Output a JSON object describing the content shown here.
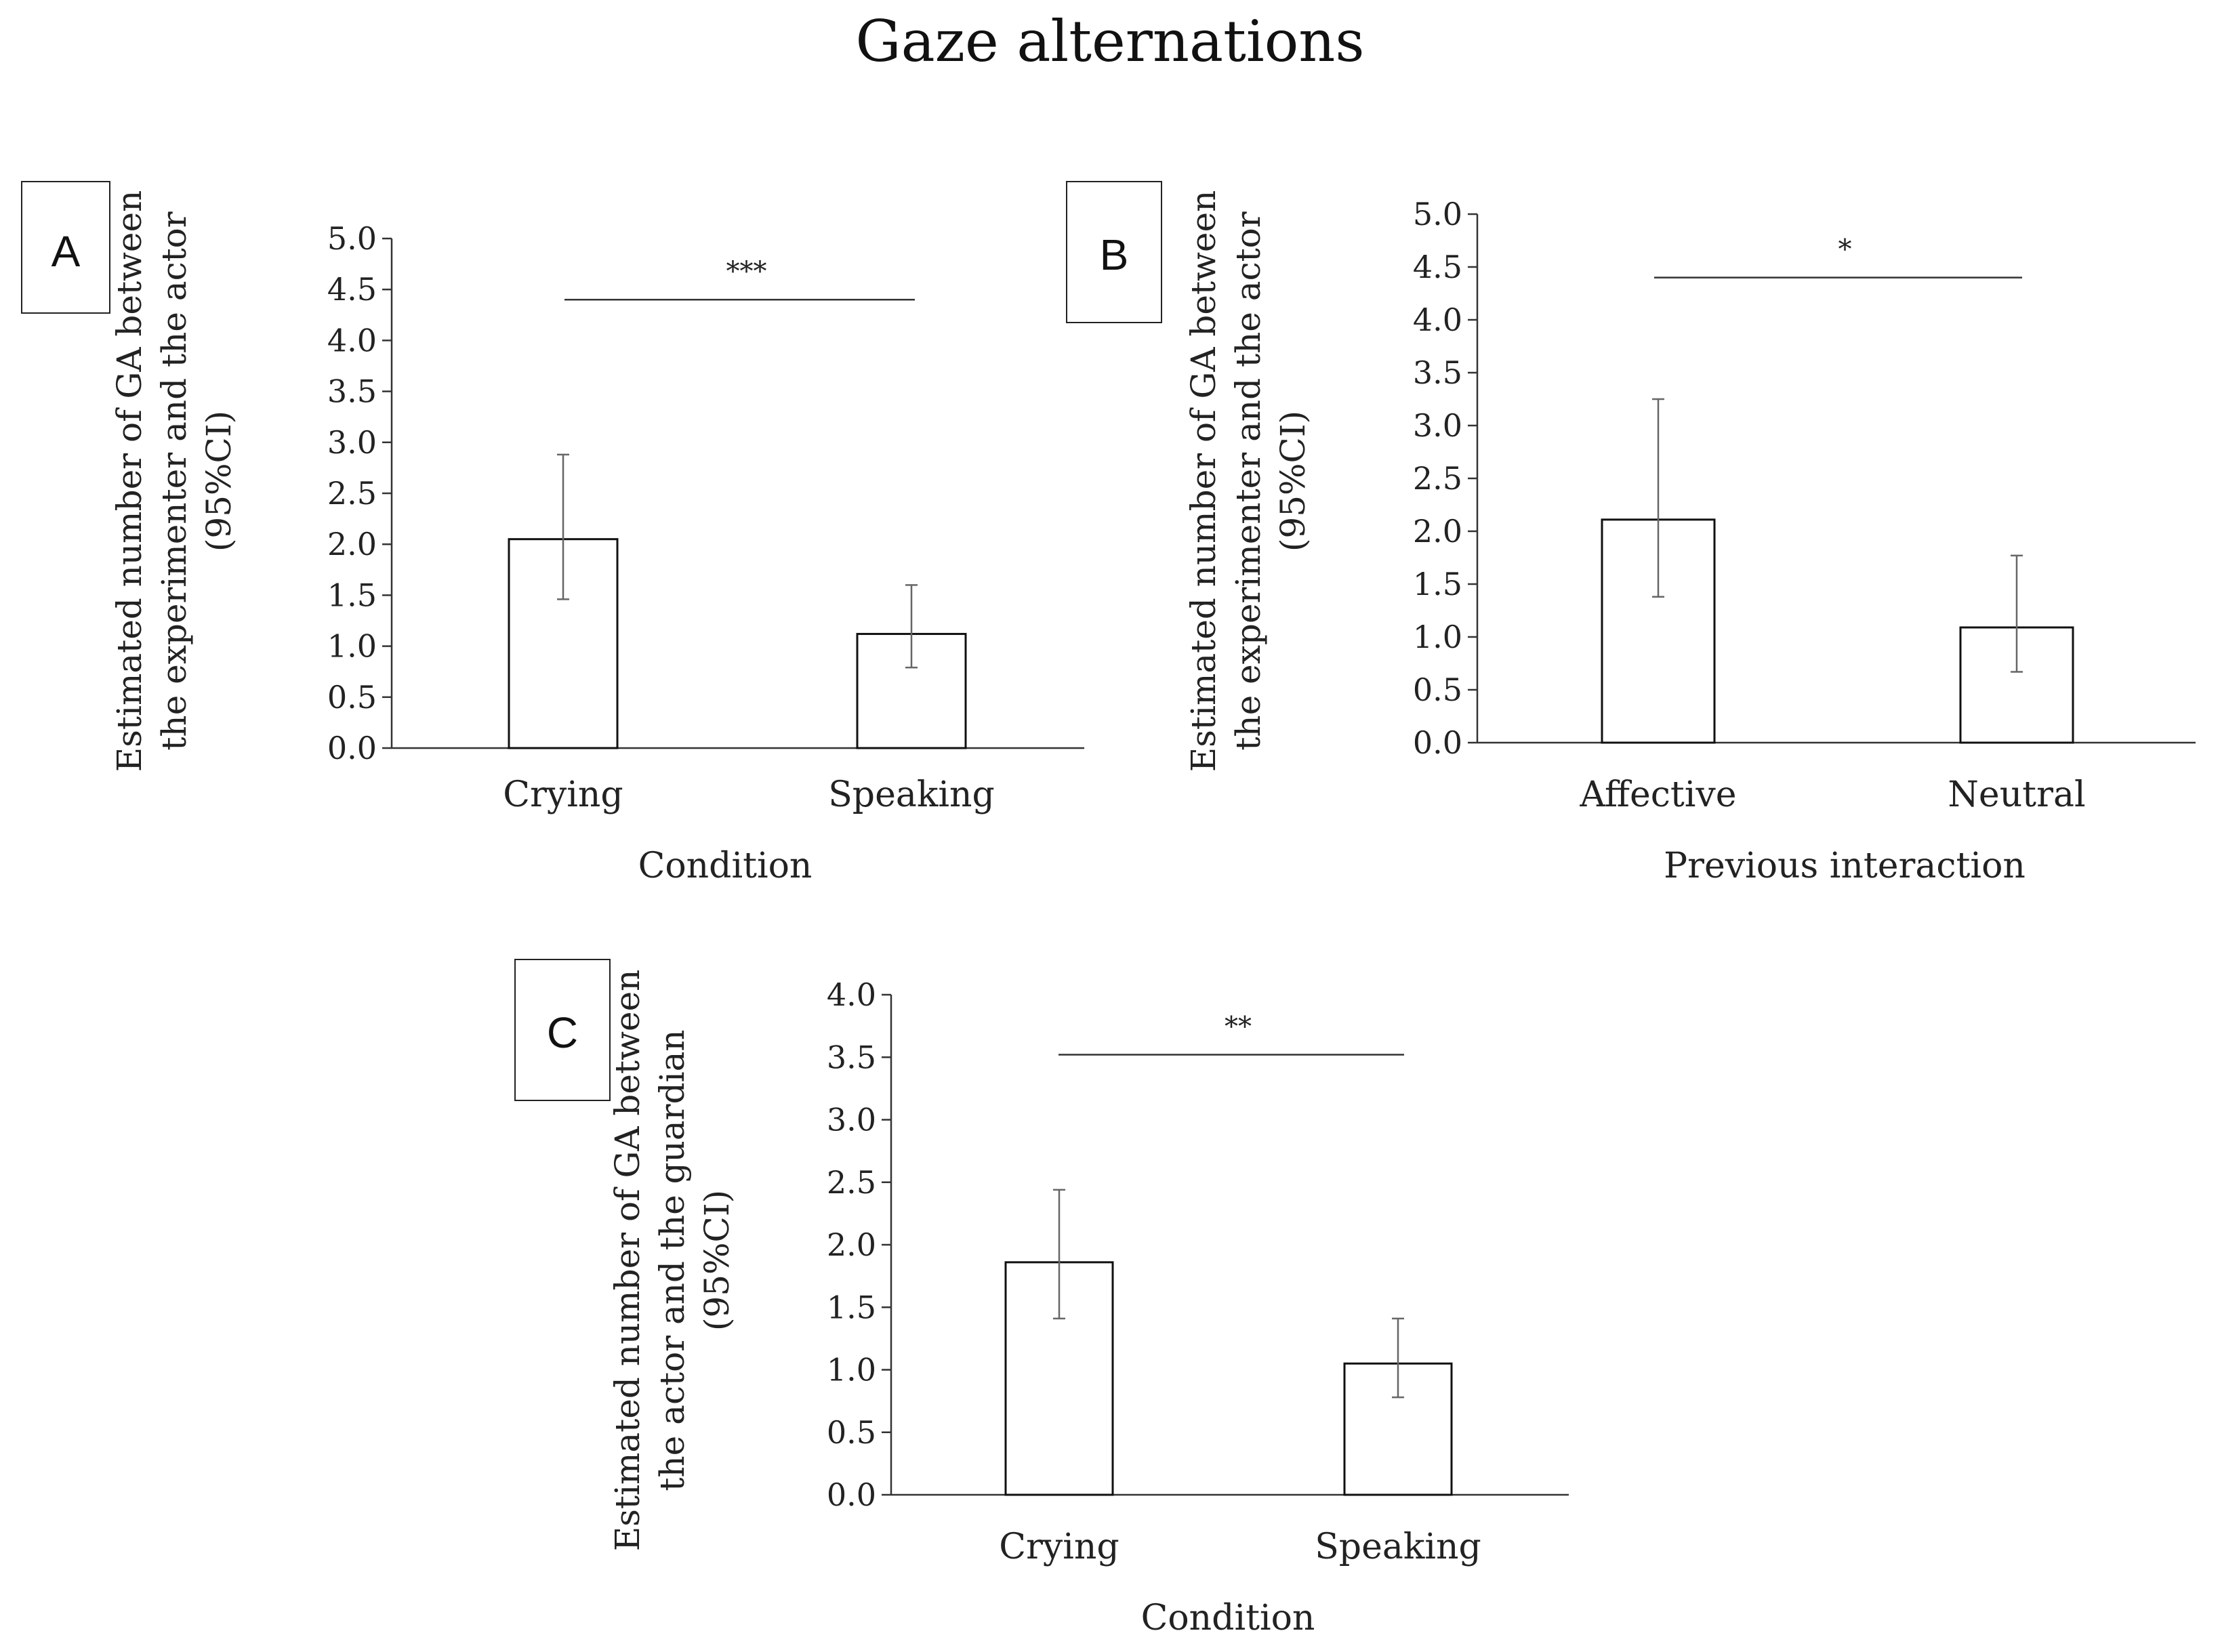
{
  "figure_title": "Gaze alternations",
  "chart_data": [
    {
      "panel": "A",
      "type": "bar",
      "title": "",
      "categories": [
        "Crying",
        "Speaking"
      ],
      "values": [
        2.05,
        1.12
      ],
      "ci_lower": [
        1.46,
        0.79
      ],
      "ci_upper": [
        2.88,
        1.6
      ],
      "xlabel": "Condition",
      "ylabel_lines": [
        "Estimated number of GA between",
        "the experimenter and the actor",
        "(95%CI)"
      ],
      "ylim": [
        0,
        5
      ],
      "yticks": [
        "0.0",
        "0.5",
        "1.0",
        "1.5",
        "2.0",
        "2.5",
        "3.0",
        "3.5",
        "4.0",
        "4.5",
        "5.0"
      ],
      "significance": {
        "label": "***",
        "y": 4.4
      }
    },
    {
      "panel": "B",
      "type": "bar",
      "title": "",
      "categories": [
        "Affective",
        "Neutral"
      ],
      "values": [
        2.11,
        1.09
      ],
      "ci_lower": [
        1.38,
        0.67
      ],
      "ci_upper": [
        3.25,
        1.77
      ],
      "xlabel": "Previous interaction",
      "ylabel_lines": [
        "Estimated number of GA between",
        "the experimenter and the actor",
        "(95%CI)"
      ],
      "ylim": [
        0,
        5
      ],
      "yticks": [
        "0.0",
        "0.5",
        "1.0",
        "1.5",
        "2.0",
        "2.5",
        "3.0",
        "3.5",
        "4.0",
        "4.5",
        "5.0"
      ],
      "significance": {
        "label": "*",
        "y": 4.4
      }
    },
    {
      "panel": "C",
      "type": "bar",
      "title": "",
      "categories": [
        "Crying",
        "Speaking"
      ],
      "values": [
        1.86,
        1.05
      ],
      "ci_lower": [
        1.41,
        0.78
      ],
      "ci_upper": [
        2.44,
        1.41
      ],
      "xlabel": "Condition",
      "ylabel_lines": [
        "Estimated number of GA between",
        "the actor and the guardian",
        "(95%CI)"
      ],
      "ylim": [
        0,
        4
      ],
      "yticks": [
        "0.0",
        "0.5",
        "1.0",
        "1.5",
        "2.0",
        "2.5",
        "3.0",
        "3.5",
        "4.0"
      ],
      "significance": {
        "label": "**",
        "y": 3.52
      }
    }
  ]
}
